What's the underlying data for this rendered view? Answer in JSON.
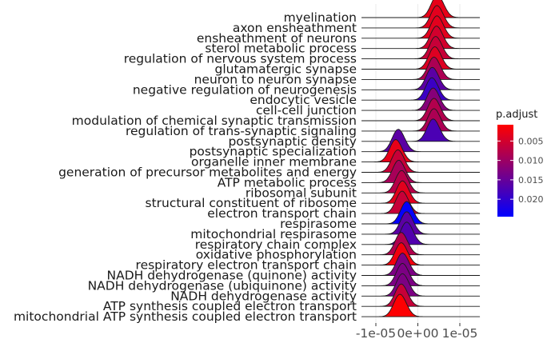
{
  "chart_data": {
    "type": "ridgeline",
    "title": "",
    "xlabel": "",
    "ylabel": "",
    "x_ticks": [
      {
        "value": -1e-05,
        "label": "-1e-05"
      },
      {
        "value": 0,
        "label": "0e+00"
      },
      {
        "value": 1e-05,
        "label": "1e-05"
      }
    ],
    "xlim": [
      -1.5e-05,
      1.8e-05
    ],
    "grid": "white panel, vertical lines at x ticks",
    "legend": {
      "title": "p.adjust",
      "placement": "right",
      "range": [
        0.0008,
        0.0245
      ],
      "ticks": [
        {
          "value": 0.005,
          "label": "0.005"
        },
        {
          "value": 0.01,
          "label": "0.010"
        },
        {
          "value": 0.015,
          "label": "0.015"
        },
        {
          "value": 0.02,
          "label": "0.020"
        }
      ],
      "low_color": "#ff0000",
      "high_color": "#0000ff"
    },
    "series": [
      {
        "name": "myelination",
        "center": 4.3e-06,
        "padj": 0.003
      },
      {
        "name": "axon ensheathment",
        "center": 4.2e-06,
        "padj": 0.0035
      },
      {
        "name": "ensheathment of neurons",
        "center": 4.2e-06,
        "padj": 0.0035
      },
      {
        "name": "sterol metabolic process",
        "center": 4.1e-06,
        "padj": 0.005
      },
      {
        "name": "regulation of nervous system process",
        "center": 3.9e-06,
        "padj": 0.006
      },
      {
        "name": "glutamatergic synapse",
        "center": 3.7e-06,
        "padj": 0.004
      },
      {
        "name": "neuron to neuron synapse",
        "center": 3.5e-06,
        "padj": 0.0085
      },
      {
        "name": "negative regulation of neurogenesis",
        "center": 3.1e-06,
        "padj": 0.016
      },
      {
        "name": "endocytic vesicle",
        "center": 3e-06,
        "padj": 0.019
      },
      {
        "name": "cell-cell junction",
        "center": 3.3e-06,
        "padj": 0.012
      },
      {
        "name": "modulation of chemical synaptic transmission",
        "center": 3.5e-06,
        "padj": 0.008
      },
      {
        "name": "regulation of trans-synaptic signaling",
        "center": 3.5e-06,
        "padj": 0.0085
      },
      {
        "name": "postsynaptic density",
        "center": 3.3e-06,
        "padj": 0.0175
      },
      {
        "name": "postsynaptic specialization",
        "center": -5e-06,
        "padj": 0.016
      },
      {
        "name": "organelle inner membrane",
        "center": -5.6e-06,
        "padj": 0.003
      },
      {
        "name": "generation of precursor metabolites and energy",
        "center": -5.1e-06,
        "padj": 0.006
      },
      {
        "name": "ATP metabolic process",
        "center": -4.9e-06,
        "padj": 0.009
      },
      {
        "name": "ribosomal subunit",
        "center": -4.2e-06,
        "padj": 0.0075
      },
      {
        "name": "structural constituent of ribosome",
        "center": -4e-06,
        "padj": 0.0035
      },
      {
        "name": "electron transport chain",
        "center": -4.1e-06,
        "padj": 0.006
      },
      {
        "name": "respirasome",
        "center": -3e-06,
        "padj": 0.024
      },
      {
        "name": "mitochondrial respirasome",
        "center": -3e-06,
        "padj": 0.016
      },
      {
        "name": "respiratory chain complex",
        "center": -3e-06,
        "padj": 0.017
      },
      {
        "name": "oxidative phosphorylation",
        "center": -4.3e-06,
        "padj": 0.008
      },
      {
        "name": "respiratory electron transport chain",
        "center": -4.3e-06,
        "padj": 0.002
      },
      {
        "name": "NADH dehydrogenase (quinone) activity",
        "center": -4e-06,
        "padj": 0.013
      },
      {
        "name": "NADH dehydrogenase (ubiquinone) activity",
        "center": -4e-06,
        "padj": 0.013
      },
      {
        "name": "NADH dehydrogenase activity",
        "center": -4e-06,
        "padj": 0.013
      },
      {
        "name": "ATP synthesis coupled electron transport",
        "center": -4.3e-06,
        "padj": 0.006
      },
      {
        "name": "mitochondrial ATP synthesis coupled electron transport",
        "center": -4.6e-06,
        "padj": 0.001
      }
    ]
  }
}
